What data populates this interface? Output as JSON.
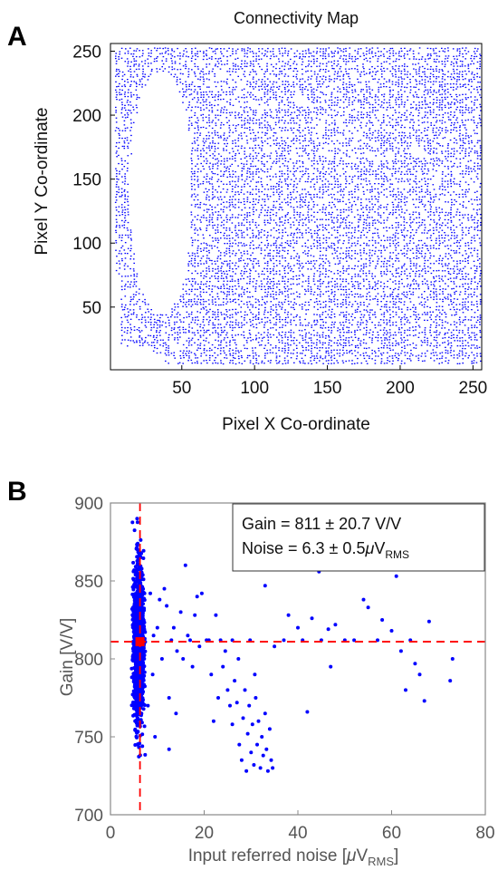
{
  "chart_data": [
    {
      "panel": "A",
      "type": "scatter",
      "title": "Connectivity Map",
      "xlabel": "Pixel X Co-ordinate",
      "ylabel": "Pixel Y Co-ordinate",
      "xlim": [
        1,
        256
      ],
      "ylim": [
        1,
        256
      ],
      "xticks": [
        50,
        100,
        150,
        200,
        250
      ],
      "yticks": [
        50,
        100,
        150,
        200,
        250
      ],
      "point_color": "#0000ff",
      "empty_regions": [
        {
          "x_range": [
            10,
            55
          ],
          "y_range": [
            45,
            230
          ]
        },
        {
          "x_range": [
            1,
            10
          ],
          "y_range": [
            1,
            75
          ]
        }
      ],
      "grid": false
    },
    {
      "panel": "B",
      "type": "scatter",
      "xlabel_main": "Input referred noise [",
      "xlabel_mu": "μ",
      "xlabel_v": "V",
      "xlabel_sub": "RMS",
      "xlabel_close": "]",
      "ylabel": "Gain [V/V]",
      "xlim": [
        0,
        80
      ],
      "ylim": [
        700,
        900
      ],
      "xticks": [
        0,
        20,
        40,
        60,
        80
      ],
      "yticks": [
        700,
        750,
        800,
        850,
        900
      ],
      "point_color": "#0000ff",
      "mean_marker": {
        "x": 6.3,
        "y": 811,
        "color": "#ff0000"
      },
      "reference_lines": {
        "x": 6.3,
        "y": 811,
        "color": "#ff0000",
        "style": "dashed"
      },
      "annotation": {
        "gain_line": "Gain  = 811 ± 20.7 V/V",
        "noise_prefix": "Noise = 6.3 ± 0.5",
        "noise_mu": "μ",
        "noise_v": "V",
        "noise_sub": "RMS"
      },
      "main_cluster": {
        "x_range": [
          4.5,
          7.5
        ],
        "y_range": [
          725,
          890
        ]
      },
      "outliers": [
        [
          8.5,
          842
        ],
        [
          9.2,
          815
        ],
        [
          10.5,
          838
        ],
        [
          11.0,
          800
        ],
        [
          12.0,
          834
        ],
        [
          12.5,
          775
        ],
        [
          13.5,
          820
        ],
        [
          14.2,
          805
        ],
        [
          15.0,
          830
        ],
        [
          16.0,
          860
        ],
        [
          16.5,
          815
        ],
        [
          17.5,
          795
        ],
        [
          18.0,
          828
        ],
        [
          19.0,
          808
        ],
        [
          19.5,
          842
        ],
        [
          20.5,
          812
        ],
        [
          21.5,
          790
        ],
        [
          22.0,
          760
        ],
        [
          23.0,
          775
        ],
        [
          24.0,
          795
        ],
        [
          25.0,
          780
        ],
        [
          25.5,
          770
        ],
        [
          26.0,
          758
        ],
        [
          26.5,
          786
        ],
        [
          27.0,
          772
        ],
        [
          27.5,
          745
        ],
        [
          28.0,
          735
        ],
        [
          28.3,
          762
        ],
        [
          28.7,
          780
        ],
        [
          29.0,
          728
        ],
        [
          29.3,
          752
        ],
        [
          29.6,
          770
        ],
        [
          30.0,
          740
        ],
        [
          30.3,
          758
        ],
        [
          30.6,
          732
        ],
        [
          31.0,
          775
        ],
        [
          31.3,
          745
        ],
        [
          31.6,
          760
        ],
        [
          32.0,
          730
        ],
        [
          32.3,
          750
        ],
        [
          32.6,
          738
        ],
        [
          33.0,
          765
        ],
        [
          33.3,
          742
        ],
        [
          33.6,
          728
        ],
        [
          34.0,
          755
        ],
        [
          34.3,
          735
        ],
        [
          34.6,
          730
        ],
        [
          30.8,
          790
        ],
        [
          27.3,
          800
        ],
        [
          29.8,
          812
        ],
        [
          33.0,
          847
        ],
        [
          35.0,
          808
        ],
        [
          38.0,
          828
        ],
        [
          40.0,
          820
        ],
        [
          42.0,
          766
        ],
        [
          43.0,
          826
        ],
        [
          44.5,
          856
        ],
        [
          45.0,
          812
        ],
        [
          46.5,
          819
        ],
        [
          48.0,
          822
        ],
        [
          50.0,
          812
        ],
        [
          54.0,
          838
        ],
        [
          55.0,
          833
        ],
        [
          57.0,
          812
        ],
        [
          58.0,
          825
        ],
        [
          60.0,
          818
        ],
        [
          61.0,
          853
        ],
        [
          62.0,
          805
        ],
        [
          63.0,
          780
        ],
        [
          64.0,
          812
        ],
        [
          65.0,
          797
        ],
        [
          66.0,
          790
        ],
        [
          67.0,
          773
        ],
        [
          68.0,
          824
        ],
        [
          72.5,
          786
        ],
        [
          73.0,
          800
        ],
        [
          37.0,
          812
        ],
        [
          41.0,
          812
        ],
        [
          52.0,
          812
        ],
        [
          47.0,
          795
        ],
        [
          10.0,
          820
        ],
        [
          11.5,
          845
        ],
        [
          13.0,
          812
        ],
        [
          15.5,
          800
        ],
        [
          17.0,
          812
        ],
        [
          18.5,
          840
        ],
        [
          21.0,
          812
        ],
        [
          23.5,
          812
        ],
        [
          9.0,
          790
        ],
        [
          8.0,
          770
        ],
        [
          9.5,
          750
        ],
        [
          12.5,
          742
        ],
        [
          14.0,
          765
        ],
        [
          24.5,
          805
        ],
        [
          26.0,
          812
        ],
        [
          22.5,
          828
        ]
      ],
      "grid": false
    }
  ]
}
